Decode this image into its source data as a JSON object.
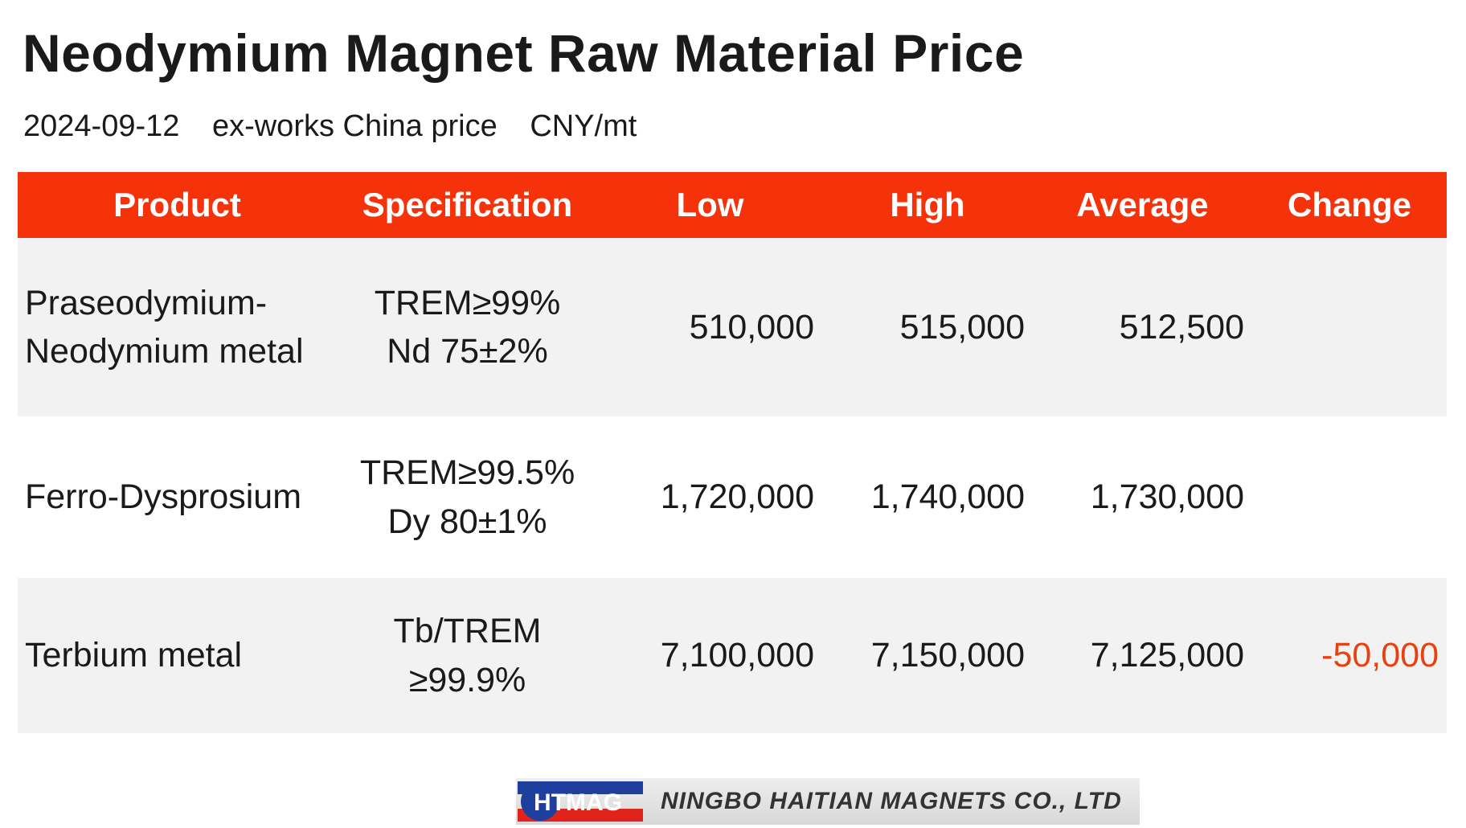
{
  "header": {
    "title": "Neodymium Magnet Raw Material Price",
    "date": "2024-09-12",
    "basis": "ex-works China price",
    "unit": "CNY/mt"
  },
  "table": {
    "columns": [
      "Product",
      "Specification",
      "Low",
      "High",
      "Average",
      "Change"
    ],
    "rows": [
      {
        "product": [
          "Praseodymium-",
          "Neodymium metal"
        ],
        "spec": [
          "TREM≥99%",
          "Nd 75±2%"
        ],
        "low": "510,000",
        "high": "515,000",
        "average": "512,500"
      },
      {
        "product": [
          "Ferro-Dysprosium"
        ],
        "spec": [
          "TREM≥99.5%",
          "Dy 80±1%"
        ],
        "low": "1,720,000",
        "high": "1,740,000",
        "average": "1,730,000"
      },
      {
        "product": [
          "Terbium metal"
        ],
        "spec": [
          "Tb/TREM",
          "≥99.9%"
        ],
        "low": "7,100,000",
        "high": "7,150,000",
        "average": "7,125,000",
        "change": "-50,000"
      }
    ]
  },
  "footer": {
    "logo": "HTMAG",
    "company": "NINGBO HAITIAN MAGNETS CO., LTD"
  }
}
